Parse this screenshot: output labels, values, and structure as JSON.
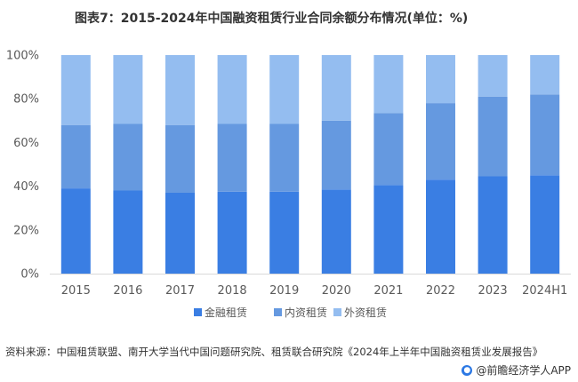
{
  "title": "图表7：2015-2024年中国融资租赁行业合同余额分布情况(单位：%)",
  "source": "资料来源：中国租赁联盟、南开大学当代中国问题研究院、租赁联合研究院《2024年上半年中国融资租赁业发展报告》",
  "brand": "@前瞻经济学人APP",
  "chart_data": {
    "type": "bar",
    "stacked": true,
    "percent": true,
    "categories": [
      "2015",
      "2016",
      "2017",
      "2018",
      "2019",
      "2020",
      "2021",
      "2022",
      "2023",
      "2024H1"
    ],
    "series": [
      {
        "name": "金融租赁",
        "color": "#3a7ee3",
        "values": [
          39,
          38,
          37,
          37.5,
          37.5,
          38.5,
          40.5,
          43,
          44.5,
          45
        ]
      },
      {
        "name": "内资租赁",
        "color": "#6599e0",
        "values": [
          29,
          30.5,
          31,
          31,
          31,
          31.5,
          33,
          35,
          36.5,
          37
        ]
      },
      {
        "name": "外资租赁",
        "color": "#94bdf0",
        "values": [
          32,
          31.5,
          32,
          31.5,
          31.5,
          30,
          26.5,
          22,
          19,
          18
        ]
      }
    ],
    "yticks": [
      "0%",
      "20%",
      "40%",
      "60%",
      "80%",
      "100%"
    ],
    "ylim": [
      0,
      100
    ],
    "legend_position": "bottom",
    "grid": false
  }
}
